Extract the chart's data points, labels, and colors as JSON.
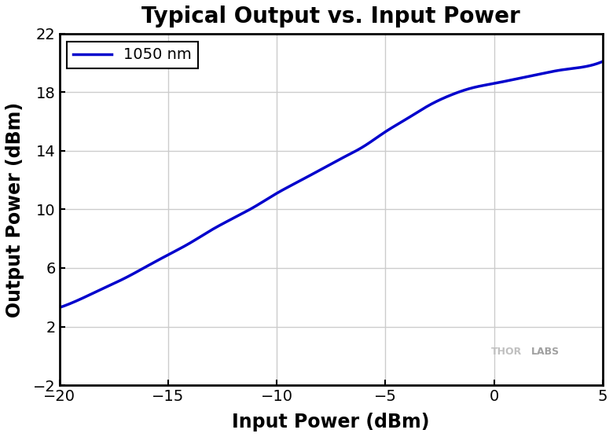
{
  "title": "Typical Output vs. Input Power",
  "xlabel": "Input Power (dBm)",
  "ylabel": "Output Power (dBm)",
  "legend_label": "1050 nm",
  "line_color": "#0000CC",
  "fig_bg_color": "#FFFFFF",
  "plot_bg_color": "#FFFFFF",
  "grid_color": "#CCCCCC",
  "xlim": [
    -20,
    5
  ],
  "ylim": [
    -2,
    22
  ],
  "xticks": [
    -20,
    -15,
    -10,
    -5,
    0,
    5
  ],
  "yticks": [
    -2,
    2,
    6,
    10,
    14,
    18,
    22
  ],
  "title_fontsize": 20,
  "axis_label_fontsize": 17,
  "tick_fontsize": 14,
  "legend_fontsize": 14,
  "watermark_color": "#BBBBBB",
  "curve_x": [
    -20,
    -19,
    -18,
    -17,
    -16,
    -15,
    -14,
    -13,
    -12,
    -11,
    -10,
    -9,
    -8,
    -7,
    -6,
    -5,
    -4,
    -3,
    -2,
    -1,
    0,
    1,
    2,
    3,
    4,
    5
  ],
  "curve_y": [
    3.3,
    3.9,
    4.6,
    5.3,
    6.1,
    6.9,
    7.7,
    8.6,
    9.4,
    10.2,
    11.1,
    11.9,
    12.7,
    13.5,
    14.3,
    15.3,
    16.2,
    17.1,
    17.8,
    18.3,
    18.6,
    18.9,
    19.2,
    19.5,
    19.7,
    20.1
  ]
}
